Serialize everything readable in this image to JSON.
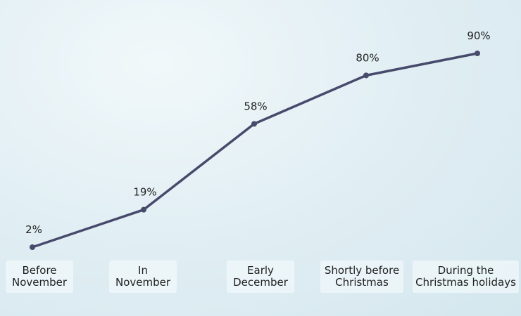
{
  "chart_data": {
    "type": "line",
    "categories": [
      "Before November",
      "In November",
      "Early December",
      "Shortly before Christmas",
      "During the Christmas holidays"
    ],
    "values": [
      2,
      19,
      58,
      80,
      90
    ],
    "value_labels": [
      "2%",
      "19%",
      "58%",
      "80%",
      "90%"
    ],
    "color": "#474a6b"
  }
}
